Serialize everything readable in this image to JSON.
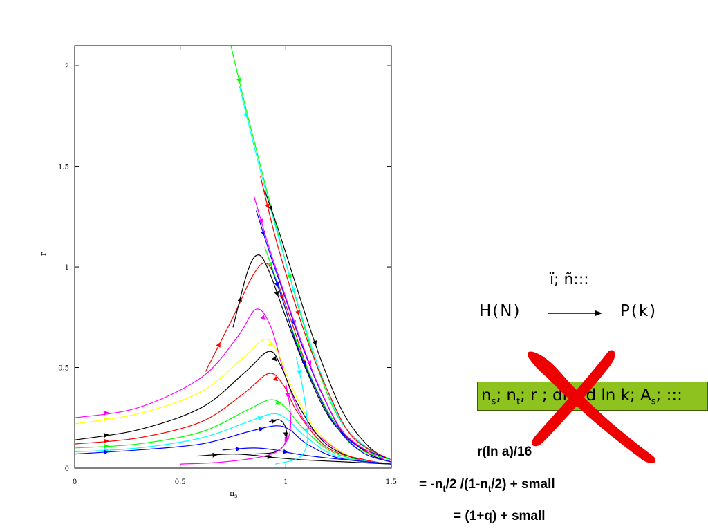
{
  "chart_data": {
    "type": "line",
    "xlabel": "n_s",
    "ylabel": "r",
    "xlim": [
      0,
      1.5
    ],
    "ylim": [
      0,
      2.1
    ],
    "xticks": [
      0,
      0.5,
      1,
      1.5
    ],
    "xtick_labels": [
      "0",
      "0.5",
      "1",
      "1.5"
    ],
    "yticks": [
      0,
      0.5,
      1,
      1.5,
      2
    ],
    "ytick_labels": [
      "0",
      "0.5",
      "1",
      "1.5",
      "2"
    ],
    "grid": false,
    "series": [
      {
        "color": "#ff00ff",
        "points": [
          [
            0,
            0.25
          ],
          [
            0.3,
            0.3
          ],
          [
            0.6,
            0.45
          ],
          [
            0.77,
            0.65
          ],
          [
            0.86,
            0.79
          ],
          [
            0.93,
            0.7
          ],
          [
            1.0,
            0.45
          ],
          [
            1.1,
            0.22
          ],
          [
            1.3,
            0.06
          ],
          [
            1.5,
            0.02
          ]
        ]
      },
      {
        "color": "#ffff00",
        "points": [
          [
            0,
            0.22
          ],
          [
            0.3,
            0.27
          ],
          [
            0.6,
            0.38
          ],
          [
            0.8,
            0.55
          ],
          [
            0.9,
            0.64
          ],
          [
            0.96,
            0.58
          ],
          [
            1.03,
            0.4
          ],
          [
            1.15,
            0.18
          ],
          [
            1.32,
            0.05
          ],
          [
            1.5,
            0.02
          ]
        ]
      },
      {
        "color": "#000000",
        "points": [
          [
            0,
            0.14
          ],
          [
            0.3,
            0.19
          ],
          [
            0.6,
            0.3
          ],
          [
            0.8,
            0.47
          ],
          [
            0.92,
            0.58
          ],
          [
            0.98,
            0.5
          ],
          [
            1.05,
            0.33
          ],
          [
            1.18,
            0.13
          ],
          [
            1.35,
            0.04
          ],
          [
            1.5,
            0.02
          ]
        ]
      },
      {
        "color": "#ff0000",
        "points": [
          [
            0,
            0.12
          ],
          [
            0.3,
            0.15
          ],
          [
            0.6,
            0.23
          ],
          [
            0.8,
            0.37
          ],
          [
            0.92,
            0.47
          ],
          [
            0.99,
            0.41
          ],
          [
            1.06,
            0.27
          ],
          [
            1.2,
            0.1
          ],
          [
            1.38,
            0.04
          ],
          [
            1.5,
            0.02
          ]
        ]
      },
      {
        "color": "#00ff00",
        "points": [
          [
            0,
            0.1
          ],
          [
            0.3,
            0.12
          ],
          [
            0.6,
            0.18
          ],
          [
            0.82,
            0.29
          ],
          [
            0.93,
            0.34
          ],
          [
            1.0,
            0.3
          ],
          [
            1.08,
            0.2
          ],
          [
            1.22,
            0.08
          ],
          [
            1.4,
            0.03
          ],
          [
            1.5,
            0.02
          ]
        ]
      },
      {
        "color": "#00ffff",
        "points": [
          [
            0,
            0.08
          ],
          [
            0.3,
            0.1
          ],
          [
            0.6,
            0.15
          ],
          [
            0.82,
            0.23
          ],
          [
            0.94,
            0.27
          ],
          [
            1.01,
            0.24
          ],
          [
            1.09,
            0.16
          ],
          [
            1.24,
            0.06
          ],
          [
            1.5,
            0.02
          ]
        ]
      },
      {
        "color": "#0000ff",
        "points": [
          [
            0,
            0.07
          ],
          [
            0.3,
            0.09
          ],
          [
            0.6,
            0.12
          ],
          [
            0.82,
            0.18
          ],
          [
            0.95,
            0.21
          ],
          [
            1.02,
            0.19
          ],
          [
            1.1,
            0.12
          ],
          [
            1.25,
            0.05
          ],
          [
            1.5,
            0.02
          ]
        ]
      },
      {
        "color": "#ff0000",
        "points": [
          [
            0.62,
            0.48
          ],
          [
            0.75,
            0.75
          ],
          [
            0.84,
            0.95
          ],
          [
            0.9,
            1.02
          ],
          [
            0.95,
            0.95
          ],
          [
            1.02,
            0.75
          ],
          [
            1.12,
            0.45
          ],
          [
            1.25,
            0.2
          ],
          [
            1.4,
            0.07
          ],
          [
            1.5,
            0.03
          ]
        ]
      },
      {
        "color": "#000000",
        "points": [
          [
            0.75,
            0.7
          ],
          [
            0.82,
            0.98
          ],
          [
            0.87,
            1.06
          ],
          [
            0.92,
            0.98
          ],
          [
            1.0,
            0.75
          ],
          [
            1.1,
            0.48
          ],
          [
            1.22,
            0.23
          ],
          [
            1.38,
            0.08
          ],
          [
            1.5,
            0.03
          ]
        ]
      },
      {
        "color": "#00ff00",
        "points": [
          [
            0.74,
            2.1
          ],
          [
            0.82,
            1.75
          ],
          [
            0.9,
            1.42
          ],
          [
            0.98,
            1.1
          ],
          [
            1.06,
            0.8
          ],
          [
            1.15,
            0.5
          ],
          [
            1.25,
            0.25
          ],
          [
            1.38,
            0.1
          ],
          [
            1.5,
            0.04
          ]
        ]
      },
      {
        "color": "#00ffff",
        "points": [
          [
            0.78,
            1.9
          ],
          [
            0.85,
            1.6
          ],
          [
            0.92,
            1.32
          ],
          [
            1.0,
            1.02
          ],
          [
            1.08,
            0.74
          ],
          [
            1.17,
            0.46
          ],
          [
            1.27,
            0.22
          ],
          [
            1.4,
            0.09
          ],
          [
            1.5,
            0.04
          ]
        ]
      },
      {
        "color": "#000000",
        "points": [
          [
            0.9,
            1.38
          ],
          [
            0.96,
            1.2
          ],
          [
            1.03,
            0.97
          ],
          [
            1.1,
            0.74
          ],
          [
            1.18,
            0.5
          ],
          [
            1.28,
            0.26
          ],
          [
            1.4,
            0.1
          ],
          [
            1.5,
            0.04
          ]
        ]
      },
      {
        "color": "#ff0000",
        "points": [
          [
            0.88,
            1.45
          ],
          [
            0.95,
            1.15
          ],
          [
            1.02,
            0.9
          ],
          [
            1.1,
            0.64
          ],
          [
            1.2,
            0.38
          ],
          [
            1.32,
            0.15
          ],
          [
            1.5,
            0.04
          ]
        ]
      },
      {
        "color": "#0000ff",
        "points": [
          [
            0.86,
            1.28
          ],
          [
            0.93,
            1.05
          ],
          [
            1.0,
            0.84
          ],
          [
            1.08,
            0.6
          ],
          [
            1.18,
            0.35
          ],
          [
            1.3,
            0.14
          ],
          [
            1.5,
            0.04
          ]
        ]
      },
      {
        "color": "#ff00ff",
        "points": [
          [
            0.85,
            1.35
          ],
          [
            0.92,
            1.1
          ],
          [
            0.99,
            0.88
          ],
          [
            1.07,
            0.64
          ],
          [
            1.16,
            0.4
          ],
          [
            1.28,
            0.17
          ],
          [
            1.45,
            0.05
          ],
          [
            1.5,
            0.04
          ]
        ]
      },
      {
        "color": "#00ff00",
        "points": [
          [
            0.9,
            1.1
          ],
          [
            0.96,
            0.92
          ],
          [
            1.02,
            0.72
          ],
          [
            1.1,
            0.5
          ],
          [
            1.2,
            0.28
          ],
          [
            1.32,
            0.11
          ],
          [
            1.5,
            0.04
          ]
        ]
      },
      {
        "color": "#0000ff",
        "points": [
          [
            0.93,
            1.0
          ],
          [
            0.99,
            0.82
          ],
          [
            1.05,
            0.62
          ],
          [
            1.13,
            0.42
          ],
          [
            1.23,
            0.22
          ],
          [
            1.36,
            0.08
          ],
          [
            1.5,
            0.03
          ]
        ]
      },
      {
        "color": "#000000",
        "points": [
          [
            0.58,
            0.06
          ],
          [
            0.75,
            0.07
          ],
          [
            0.88,
            0.06
          ],
          [
            0.97,
            0.05
          ],
          [
            1.1,
            0.04
          ],
          [
            1.3,
            0.03
          ],
          [
            1.5,
            0.02
          ]
        ]
      },
      {
        "color": "#0000ff",
        "points": [
          [
            0.7,
            0.09
          ],
          [
            0.85,
            0.1
          ],
          [
            0.95,
            0.09
          ],
          [
            1.05,
            0.07
          ],
          [
            1.2,
            0.05
          ],
          [
            1.4,
            0.03
          ],
          [
            1.5,
            0.02
          ]
        ]
      },
      {
        "color": "#000000",
        "points": [
          [
            0.92,
            0.23
          ],
          [
            0.97,
            0.24
          ],
          [
            1.0,
            0.2
          ],
          [
            1.0,
            0.13
          ],
          [
            0.95,
            0.08
          ],
          [
            0.85,
            0.07
          ]
        ]
      },
      {
        "color": "#ff00ff",
        "points": [
          [
            1.0,
            0.42
          ],
          [
            1.02,
            0.3
          ],
          [
            1.02,
            0.18
          ],
          [
            0.98,
            0.1
          ],
          [
            0.9,
            0.06
          ],
          [
            0.7,
            0.03
          ],
          [
            0.5,
            0.02
          ]
        ]
      },
      {
        "color": "#00ffff",
        "points": [
          [
            1.05,
            0.55
          ],
          [
            1.08,
            0.4
          ],
          [
            1.1,
            0.25
          ],
          [
            1.1,
            0.12
          ],
          [
            1.06,
            0.05
          ],
          [
            0.95,
            0.02
          ]
        ]
      }
    ]
  },
  "annotations": {
    "map_label": "ï; ñ:::",
    "h_label": "H(N)",
    "p_label": "P(k)",
    "box_text_html": "n<sub>s</sub>; n<sub>t</sub>; r ; dn=d ln k; A<sub>s</sub>; :::",
    "eq1": "r(ln a)/16",
    "eq2_html": "= -n<sub>t</sub>/2 /(1-n<sub>t</sub>/2) + small",
    "eq3": "= (1+q) + small"
  },
  "colors": {
    "box": "#8dc21f",
    "cross": "#ee0000"
  }
}
